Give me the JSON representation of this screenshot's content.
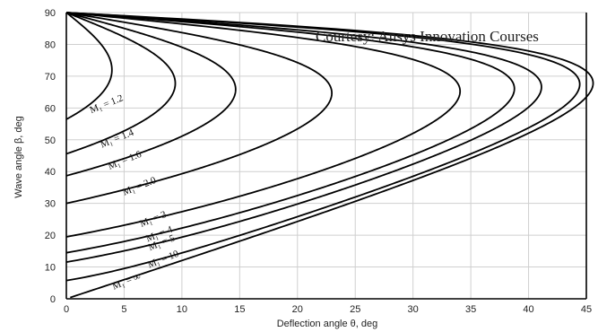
{
  "chart_data": {
    "type": "line",
    "title": "",
    "xlabel": "Deflection angle θ, deg",
    "ylabel": "Wave angle β, deg",
    "xlim": [
      0,
      45
    ],
    "ylim": [
      0,
      90
    ],
    "x_ticks": [
      0,
      5,
      10,
      15,
      20,
      25,
      30,
      35,
      40,
      45
    ],
    "y_ticks": [
      0,
      10,
      20,
      30,
      40,
      50,
      60,
      70,
      80,
      90
    ],
    "grid": true,
    "annotation": "Courtesy: Ansys Innovation Courses",
    "series": [
      {
        "name": "M₁ = 1.2",
        "mach": 1.2,
        "theta_max": 3.9,
        "beta_at_max": 70.0
      },
      {
        "name": "M₁ = 1.4",
        "mach": 1.4,
        "theta_max": 9.4,
        "beta_at_max": 68.0
      },
      {
        "name": "M₁ = 1.6",
        "mach": 1.6,
        "theta_max": 14.7,
        "beta_at_max": 66.5
      },
      {
        "name": "M₁ = 2.0",
        "mach": 2.0,
        "theta_max": 23.0,
        "beta_at_max": 64.7
      },
      {
        "name": "M₁ = 3",
        "mach": 3.0,
        "theta_max": 34.1,
        "beta_at_max": 65.2
      },
      {
        "name": "M₁ = 4",
        "mach": 4.0,
        "theta_max": 38.8,
        "beta_at_max": 65.8
      },
      {
        "name": "M₁ = 5",
        "mach": 5.0,
        "theta_max": 41.1,
        "beta_at_max": 66.4
      },
      {
        "name": "M₁ = 10",
        "mach": 10.0,
        "theta_max": 43.9,
        "beta_at_max": 67.4
      },
      {
        "name": "M₁ = ∞",
        "mach": "infinity",
        "theta_max": 45.6,
        "beta_at_max": 67.8
      }
    ]
  }
}
